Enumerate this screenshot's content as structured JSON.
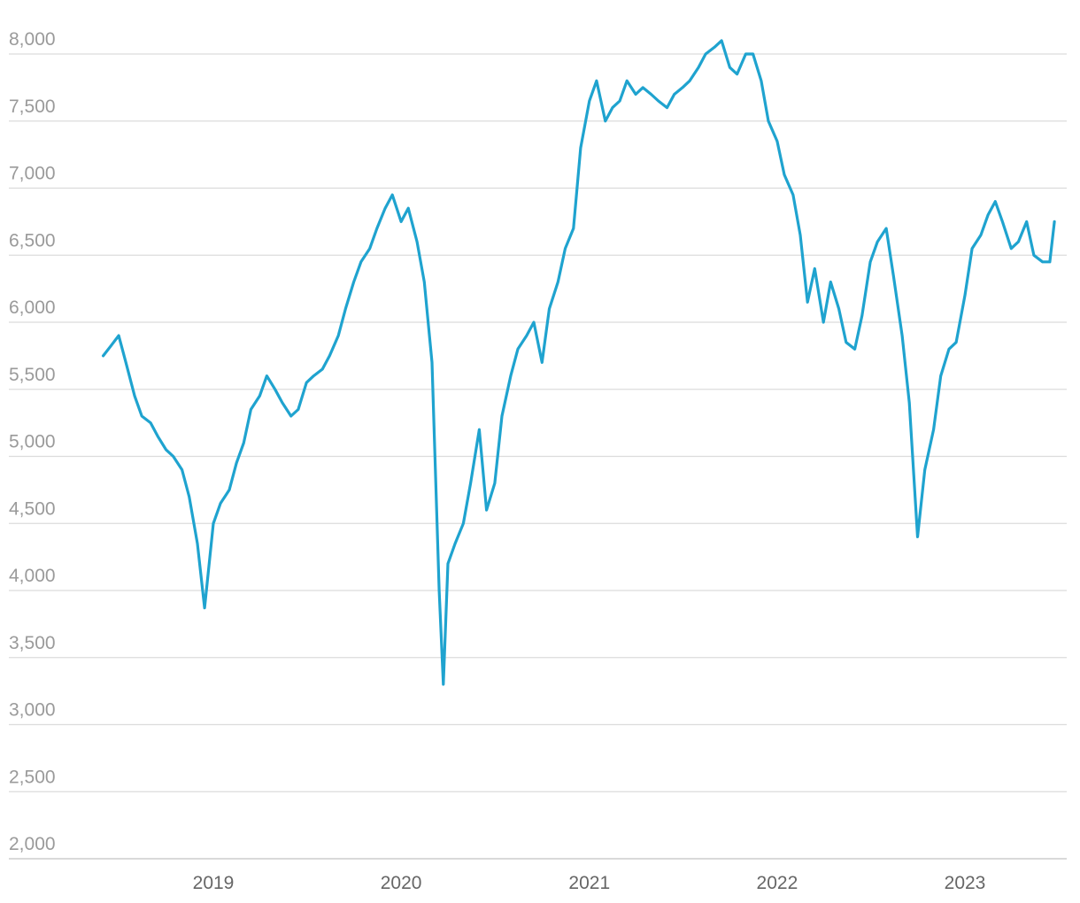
{
  "chart_data": {
    "type": "line",
    "title": "",
    "xlabel": "",
    "ylabel": "",
    "ylim": [
      2000,
      8000
    ],
    "grid": true,
    "legend": "none",
    "line_color": "#1fa3cf",
    "y_ticks": [
      "2,000",
      "2,500",
      "3,000",
      "3,500",
      "4,000",
      "4,500",
      "5,000",
      "5,500",
      "6,000",
      "6,500",
      "7,000",
      "7,500",
      "8,000"
    ],
    "x_ticks": [
      "2019",
      "2020",
      "2021",
      "2022",
      "2023"
    ],
    "series": [
      {
        "x": [
          "2018-06-01",
          "2018-06-15",
          "2018-07-01",
          "2018-07-15",
          "2018-08-01",
          "2018-08-15",
          "2018-09-01",
          "2018-09-15",
          "2018-10-01",
          "2018-10-15",
          "2018-11-01",
          "2018-11-15",
          "2018-12-01",
          "2018-12-15",
          "2019-01-01",
          "2019-01-15",
          "2019-02-01",
          "2019-02-15",
          "2019-03-01",
          "2019-03-15",
          "2019-04-01",
          "2019-04-15",
          "2019-05-01",
          "2019-05-15",
          "2019-06-01",
          "2019-06-15",
          "2019-07-01",
          "2019-07-15",
          "2019-08-01",
          "2019-08-15",
          "2019-09-01",
          "2019-09-15",
          "2019-10-01",
          "2019-10-15",
          "2019-11-01",
          "2019-11-15",
          "2019-12-01",
          "2019-12-15",
          "2020-01-01",
          "2020-01-15",
          "2020-02-01",
          "2020-02-15",
          "2020-03-01",
          "2020-03-15",
          "2020-03-23",
          "2020-04-01",
          "2020-04-15",
          "2020-05-01",
          "2020-05-15",
          "2020-06-01",
          "2020-06-15",
          "2020-07-01",
          "2020-07-15",
          "2020-08-01",
          "2020-08-15",
          "2020-09-01",
          "2020-09-15",
          "2020-10-01",
          "2020-10-15",
          "2020-11-01",
          "2020-11-15",
          "2020-12-01",
          "2020-12-15",
          "2021-01-01",
          "2021-01-15",
          "2021-02-01",
          "2021-02-15",
          "2021-03-01",
          "2021-03-15",
          "2021-04-01",
          "2021-04-15",
          "2021-05-01",
          "2021-05-15",
          "2021-06-01",
          "2021-06-15",
          "2021-07-01",
          "2021-07-15",
          "2021-08-01",
          "2021-08-15",
          "2021-09-01",
          "2021-09-15",
          "2021-10-01",
          "2021-10-15",
          "2021-11-01",
          "2021-11-15",
          "2021-12-01",
          "2021-12-15",
          "2022-01-01",
          "2022-01-15",
          "2022-02-01",
          "2022-02-15",
          "2022-03-01",
          "2022-03-15",
          "2022-04-01",
          "2022-04-15",
          "2022-05-01",
          "2022-05-15",
          "2022-06-01",
          "2022-06-15",
          "2022-07-01",
          "2022-07-15",
          "2022-08-01",
          "2022-08-15",
          "2022-09-01",
          "2022-09-15",
          "2022-10-01",
          "2022-10-15",
          "2022-11-01",
          "2022-11-15",
          "2022-12-01",
          "2022-12-15",
          "2023-01-01",
          "2023-01-15",
          "2023-02-01",
          "2023-02-15",
          "2023-03-01",
          "2023-03-15",
          "2023-04-01",
          "2023-04-15",
          "2023-05-01",
          "2023-05-15",
          "2023-06-01",
          "2023-06-15",
          "2023-06-24"
        ],
        "y": [
          5750,
          5820,
          5900,
          5700,
          5450,
          5300,
          5250,
          5150,
          5050,
          5000,
          4900,
          4700,
          4350,
          3870,
          4500,
          4650,
          4750,
          4950,
          5100,
          5350,
          5450,
          5600,
          5500,
          5400,
          5300,
          5350,
          5550,
          5600,
          5650,
          5750,
          5900,
          6100,
          6300,
          6450,
          6550,
          6700,
          6850,
          6950,
          6750,
          6850,
          6600,
          6300,
          5700,
          4000,
          3300,
          4200,
          4350,
          4500,
          4800,
          5200,
          4600,
          4800,
          5300,
          5600,
          5800,
          5900,
          6000,
          5700,
          6100,
          6300,
          6550,
          6700,
          7300,
          7650,
          7800,
          7500,
          7600,
          7650,
          7800,
          7700,
          7750,
          7700,
          7650,
          7600,
          7700,
          7750,
          7800,
          7900,
          8000,
          8050,
          8100,
          7900,
          7850,
          8000,
          8000,
          7800,
          7500,
          7350,
          7100,
          6950,
          6650,
          6150,
          6400,
          6000,
          6300,
          6100,
          5850,
          5800,
          6050,
          6450,
          6600,
          6700,
          6350,
          5900,
          5400,
          4400,
          4900,
          5200,
          5600,
          5800,
          5850,
          6200,
          6550,
          6650,
          6800,
          6900,
          6750,
          6550,
          6600,
          6750,
          6500,
          6450,
          6450,
          6750
        ]
      }
    ]
  }
}
